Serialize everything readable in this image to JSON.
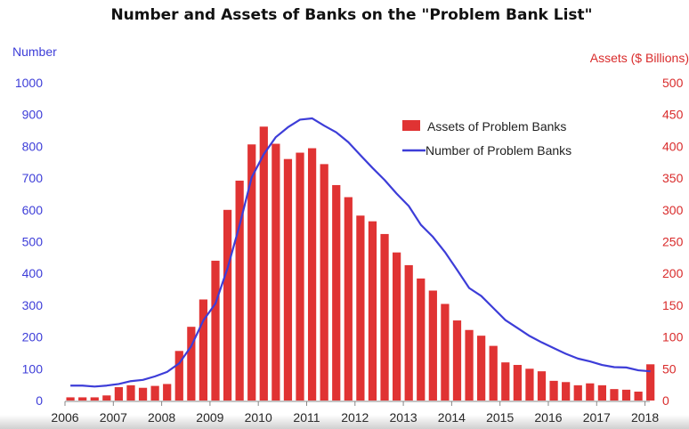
{
  "colors": {
    "bars": "#e03333",
    "line": "#3d3dd8",
    "left_axis": "#3d3dd8",
    "right_axis": "#d92b2b"
  },
  "chart_data": {
    "type": "bar+line",
    "title": "Number and Assets of Banks on the \"Problem Bank List\"",
    "left_axis_label": "Number",
    "right_axis_label": "Assets ($ Billions)",
    "left_ylim": [
      0,
      1000
    ],
    "right_ylim": [
      0,
      500
    ],
    "left_ticks": [
      "0",
      "100",
      "200",
      "300",
      "400",
      "500",
      "600",
      "700",
      "800",
      "900",
      "1000"
    ],
    "right_ticks": [
      "0",
      "50",
      "100",
      "150",
      "200",
      "250",
      "300",
      "350",
      "400",
      "450",
      "500"
    ],
    "x_ticks": [
      "2006",
      "2007",
      "2008",
      "2009",
      "2010",
      "2011",
      "2012",
      "2013",
      "2014",
      "2015",
      "2016",
      "2017",
      "2018"
    ],
    "x_range": [
      2006.0,
      2018.1
    ],
    "grid": false,
    "legend_position": "top-right",
    "series": [
      {
        "name": "Assets of Problem Banks",
        "type": "bar",
        "axis": "right",
        "x": [
          2006.0,
          2006.25,
          2006.5,
          2006.75,
          2007.0,
          2007.25,
          2007.5,
          2007.75,
          2008.0,
          2008.25,
          2008.5,
          2008.75,
          2009.0,
          2009.25,
          2009.5,
          2009.75,
          2010.0,
          2010.25,
          2010.5,
          2010.75,
          2011.0,
          2011.25,
          2011.5,
          2011.75,
          2012.0,
          2012.25,
          2012.5,
          2012.75,
          2013.0,
          2013.25,
          2013.5,
          2013.75,
          2014.0,
          2014.25,
          2014.5,
          2014.75,
          2015.0,
          2015.25,
          2015.5,
          2015.75,
          2016.0,
          2016.25,
          2016.5,
          2016.75,
          2017.0,
          2017.25,
          2017.5,
          2017.75,
          2018.0
        ],
        "values": [
          5,
          5,
          5,
          8,
          21,
          24,
          20,
          23,
          26,
          78,
          116,
          159,
          220,
          300,
          346,
          403,
          431,
          404,
          380,
          390,
          397,
          372,
          339,
          320,
          291,
          282,
          262,
          233,
          213,
          192,
          173,
          152,
          126,
          111,
          102,
          86,
          60,
          56,
          50,
          46,
          31,
          29,
          24,
          27,
          24,
          18,
          17,
          14,
          57
        ]
      },
      {
        "name": "Number of Problem Banks",
        "type": "line",
        "axis": "left",
        "x": [
          2006.0,
          2006.25,
          2006.5,
          2006.75,
          2007.0,
          2007.25,
          2007.5,
          2007.75,
          2008.0,
          2008.25,
          2008.5,
          2008.75,
          2009.0,
          2009.25,
          2009.5,
          2009.75,
          2010.0,
          2010.25,
          2010.5,
          2010.75,
          2011.0,
          2011.25,
          2011.5,
          2011.75,
          2012.0,
          2012.25,
          2012.5,
          2012.75,
          2013.0,
          2013.25,
          2013.5,
          2013.75,
          2014.0,
          2014.25,
          2014.5,
          2014.75,
          2015.0,
          2015.25,
          2015.5,
          2015.75,
          2016.0,
          2016.25,
          2016.5,
          2016.75,
          2017.0,
          2017.25,
          2017.5,
          2017.75,
          2018.0
        ],
        "values": [
          47,
          47,
          44,
          47,
          52,
          61,
          65,
          76,
          90,
          117,
          171,
          252,
          305,
          416,
          552,
          702,
          775,
          829,
          860,
          884,
          888,
          865,
          844,
          813,
          772,
          732,
          694,
          651,
          612,
          553,
          515,
          467,
          411,
          354,
          329,
          291,
          253,
          228,
          203,
          183,
          165,
          147,
          132,
          123,
          112,
          105,
          104,
          95,
          92
        ]
      }
    ]
  }
}
